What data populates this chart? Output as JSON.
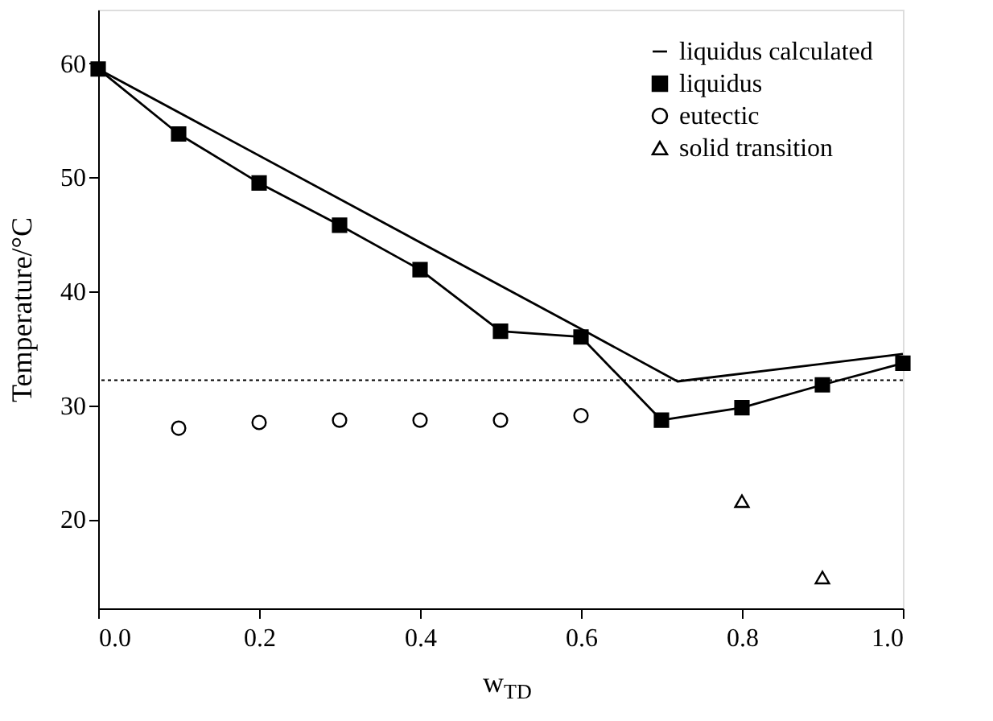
{
  "chart_data": {
    "type": "line",
    "xlabel": "w$_{TD}$",
    "ylabel": "Temperature/°C",
    "xlim": [
      0,
      1.0
    ],
    "ylim": [
      12.2,
      64.7
    ],
    "xticks": [
      {
        "value": 0,
        "label": "0.0"
      },
      0.2,
      0.4,
      0.6,
      0.8,
      {
        "value": 1,
        "label": "1.0"
      }
    ],
    "yticks": [
      20,
      30,
      40,
      50,
      60
    ],
    "grid": false,
    "legend": "top right",
    "series": [
      {
        "name": "liquidus calculated",
        "color": "#000000",
        "marker": "none",
        "line_style": "solid",
        "x": [
          0,
          0.6,
          0.72,
          1.0
        ],
        "values": [
          59.5,
          36.7,
          32.1,
          34.5
        ]
      },
      {
        "name": "liquidus",
        "color": "#000000",
        "marker": "square",
        "line_style": "solid",
        "x": [
          0,
          0.1,
          0.2,
          0.3,
          0.4,
          0.5,
          0.6,
          0.7,
          0.8,
          0.9,
          1.0
        ],
        "values": [
          59.5,
          53.8,
          49.5,
          45.8,
          41.9,
          36.5,
          36.0,
          28.7,
          29.8,
          31.8,
          33.7
        ]
      },
      {
        "name": "eutectic",
        "type": "scatter",
        "color": "#000000",
        "marker": "circle",
        "x": [
          0.1,
          0.2,
          0.3,
          0.4,
          0.5,
          0.6
        ],
        "values": [
          28.0,
          28.5,
          28.7,
          28.7,
          28.7,
          29.1
        ]
      },
      {
        "name": "solid transition",
        "type": "scatter",
        "color": "#000000",
        "marker": "triangle",
        "x": [
          0.8,
          0.9
        ],
        "values": [
          21.6,
          14.9
        ]
      }
    ],
    "ref_lines": [
      {
        "axis": "y",
        "value": 32.2,
        "label": null,
        "line_style": "dotted",
        "color": "#000000"
      }
    ]
  }
}
